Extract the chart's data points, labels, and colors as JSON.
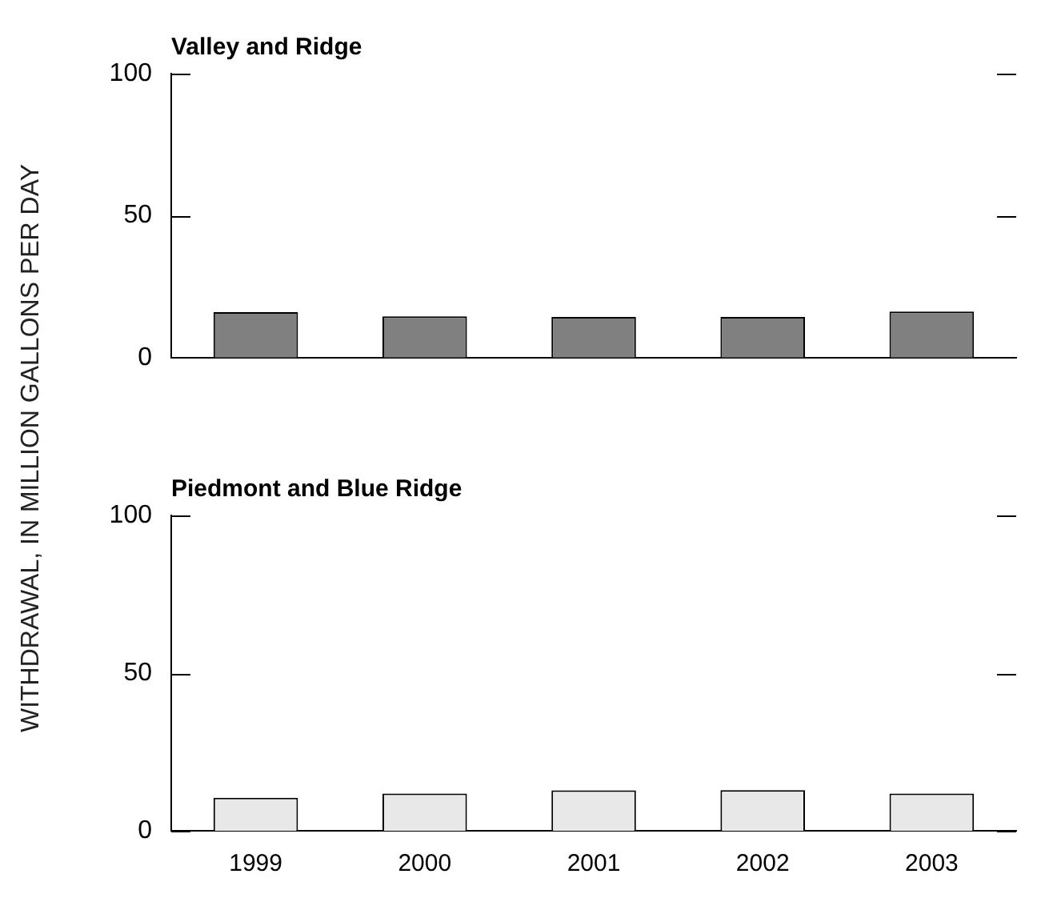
{
  "chart_data": [
    {
      "type": "bar",
      "title": "Valley and Ridge",
      "ylabel": "WITHDRAWAL, IN MILLION GALLONS PER DAY",
      "categories": [
        "1999",
        "2000",
        "2001",
        "2002",
        "2003"
      ],
      "values": [
        16,
        14.5,
        14.3,
        14.3,
        16.2
      ],
      "color": "#808080",
      "ylim": [
        0,
        100
      ],
      "yticks": [
        0,
        50,
        100
      ],
      "grid": false,
      "legend": false,
      "tick_labels": "y"
    },
    {
      "type": "bar",
      "title": "Piedmont and Blue Ridge",
      "categories": [
        "1999",
        "2000",
        "2001",
        "2002",
        "2003"
      ],
      "values": [
        10.5,
        11.8,
        12.8,
        12.9,
        11.8
      ],
      "color": "#e8e8e8",
      "ylim": [
        0,
        100
      ],
      "yticks": [
        0,
        50,
        100
      ],
      "grid": false,
      "legend": false
    }
  ]
}
